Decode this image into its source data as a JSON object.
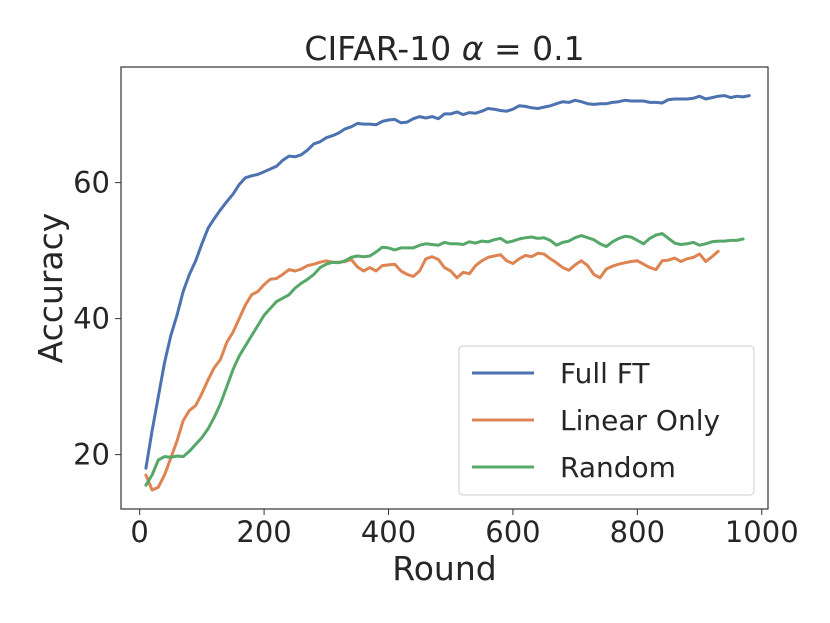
{
  "chart_data": {
    "type": "line",
    "title_prefix": "CIFAR-10",
    "title_alpha": "α",
    "title_value": " = 0.1",
    "xlabel": "Round",
    "ylabel": "Accuracy",
    "xlim": [
      -30,
      1010
    ],
    "ylim": [
      12,
      77
    ],
    "xticks": [
      0,
      200,
      400,
      600,
      800,
      1000
    ],
    "yticks": [
      20,
      40,
      60
    ],
    "grid": false,
    "legend_position": "lower-right",
    "series": [
      {
        "name": "Full FT",
        "color": "#4c72b0",
        "x": [
          10,
          20,
          30,
          40,
          50,
          60,
          70,
          80,
          90,
          100,
          110,
          120,
          130,
          140,
          150,
          160,
          170,
          180,
          190,
          200,
          210,
          220,
          230,
          240,
          250,
          260,
          270,
          280,
          290,
          300,
          310,
          320,
          330,
          340,
          350,
          360,
          370,
          380,
          390,
          400,
          410,
          420,
          430,
          440,
          450,
          460,
          470,
          480,
          490,
          500,
          510,
          520,
          530,
          540,
          550,
          560,
          570,
          580,
          590,
          600,
          610,
          620,
          630,
          640,
          650,
          660,
          670,
          680,
          690,
          700,
          710,
          720,
          730,
          740,
          750,
          760,
          770,
          780,
          790,
          800,
          810,
          820,
          830,
          840,
          850,
          860,
          870,
          880,
          890,
          900,
          910,
          920,
          930,
          940,
          950,
          960,
          970,
          980
        ],
        "y": [
          18.0,
          23.5,
          28.5,
          33.5,
          37.5,
          40.5,
          44.0,
          46.5,
          48.5,
          51.0,
          53.3,
          54.7,
          56.0,
          57.2,
          58.3,
          59.7,
          60.7,
          61.0,
          61.2,
          61.6,
          62.0,
          62.4,
          63.3,
          63.9,
          63.8,
          64.1,
          64.8,
          65.7,
          66.0,
          66.6,
          66.9,
          67.3,
          67.9,
          68.2,
          68.7,
          68.6,
          68.6,
          68.5,
          69.0,
          69.2,
          69.3,
          68.8,
          68.9,
          69.4,
          69.7,
          69.5,
          69.7,
          69.4,
          70.1,
          70.1,
          70.4,
          70.0,
          70.3,
          70.2,
          70.5,
          70.9,
          70.8,
          70.6,
          70.5,
          70.8,
          71.3,
          71.2,
          71.0,
          70.9,
          71.1,
          71.3,
          71.6,
          71.9,
          71.8,
          72.1,
          71.9,
          71.6,
          71.5,
          71.6,
          71.6,
          71.8,
          71.9,
          72.1,
          72.0,
          72.0,
          72.0,
          71.8,
          71.8,
          71.7,
          72.2,
          72.3,
          72.3,
          72.3,
          72.4,
          72.7,
          72.3,
          72.5,
          72.7,
          72.8,
          72.5,
          72.7,
          72.6,
          72.8
        ]
      },
      {
        "name": "Linear Only",
        "color": "#dd8452",
        "x": [
          10,
          20,
          30,
          40,
          50,
          60,
          70,
          80,
          90,
          100,
          110,
          120,
          130,
          140,
          150,
          160,
          170,
          180,
          190,
          200,
          210,
          220,
          230,
          240,
          250,
          260,
          270,
          280,
          290,
          300,
          310,
          320,
          330,
          340,
          350,
          360,
          370,
          380,
          390,
          400,
          410,
          420,
          430,
          440,
          450,
          460,
          470,
          480,
          490,
          500,
          510,
          520,
          530,
          540,
          550,
          560,
          570,
          580,
          590,
          600,
          610,
          620,
          630,
          640,
          650,
          660,
          670,
          680,
          690,
          700,
          710,
          720,
          730,
          740,
          750,
          760,
          770,
          780,
          790,
          800,
          810,
          820,
          830,
          840,
          850,
          860,
          870,
          880,
          890,
          900,
          910,
          920,
          930
        ],
        "y": [
          17.0,
          14.8,
          15.2,
          17.0,
          19.5,
          22.0,
          25.0,
          26.5,
          27.2,
          29.0,
          31.0,
          32.8,
          34.0,
          36.5,
          38.0,
          40.0,
          42.0,
          43.5,
          44.0,
          45.0,
          45.8,
          45.9,
          46.5,
          47.2,
          47.0,
          47.3,
          47.8,
          48.0,
          48.3,
          48.5,
          48.3,
          48.3,
          48.4,
          48.7,
          47.6,
          47.0,
          47.5,
          47.0,
          47.8,
          47.9,
          48.0,
          47.0,
          46.5,
          46.2,
          47.0,
          48.8,
          49.1,
          48.7,
          47.5,
          47.0,
          46.0,
          46.8,
          46.6,
          47.8,
          48.5,
          49.0,
          49.2,
          49.4,
          48.5,
          48.1,
          48.8,
          49.3,
          49.1,
          49.6,
          49.5,
          48.8,
          48.2,
          47.5,
          47.1,
          47.9,
          48.5,
          47.8,
          46.5,
          46.0,
          47.3,
          47.7,
          48.0,
          48.2,
          48.4,
          48.5,
          48.0,
          47.5,
          47.2,
          48.5,
          48.6,
          48.9,
          48.4,
          48.8,
          49.0,
          49.5,
          48.4,
          49.1,
          49.9
        ]
      },
      {
        "name": "Random",
        "color": "#55a868",
        "x": [
          10,
          20,
          30,
          40,
          50,
          60,
          70,
          80,
          90,
          100,
          110,
          120,
          130,
          140,
          150,
          160,
          170,
          180,
          190,
          200,
          210,
          220,
          230,
          240,
          250,
          260,
          270,
          280,
          290,
          300,
          310,
          320,
          330,
          340,
          350,
          360,
          370,
          380,
          390,
          400,
          410,
          420,
          430,
          440,
          450,
          460,
          470,
          480,
          490,
          500,
          510,
          520,
          530,
          540,
          550,
          560,
          570,
          580,
          590,
          600,
          610,
          620,
          630,
          640,
          650,
          660,
          670,
          680,
          690,
          700,
          710,
          720,
          730,
          740,
          750,
          760,
          770,
          780,
          790,
          800,
          810,
          820,
          830,
          840,
          850,
          860,
          870,
          880,
          890,
          900,
          910,
          920,
          930,
          940,
          950,
          960,
          970
        ],
        "y": [
          15.5,
          17.0,
          19.2,
          19.7,
          19.6,
          19.8,
          19.7,
          20.5,
          21.5,
          22.5,
          23.8,
          25.5,
          27.5,
          30.0,
          32.5,
          34.5,
          36.0,
          37.5,
          39.0,
          40.5,
          41.5,
          42.5,
          43.0,
          43.5,
          44.5,
          45.2,
          45.8,
          46.5,
          47.5,
          48.0,
          48.3,
          48.2,
          48.5,
          49.0,
          49.2,
          49.1,
          49.2,
          49.8,
          50.5,
          50.4,
          50.1,
          50.4,
          50.4,
          50.4,
          50.8,
          51.0,
          50.9,
          50.8,
          51.2,
          51.0,
          51.0,
          50.9,
          51.3,
          51.1,
          51.4,
          51.3,
          51.6,
          51.8,
          51.2,
          51.4,
          51.7,
          51.9,
          52.0,
          51.8,
          51.9,
          51.5,
          50.8,
          51.2,
          51.4,
          51.9,
          52.2,
          51.9,
          51.6,
          51.0,
          50.6,
          51.3,
          51.8,
          52.1,
          52.0,
          51.5,
          51.0,
          51.8,
          52.3,
          52.5,
          51.8,
          51.1,
          50.9,
          51.0,
          51.2,
          50.8,
          51.0,
          51.3,
          51.4,
          51.4,
          51.5,
          51.5,
          51.7
        ]
      }
    ]
  }
}
